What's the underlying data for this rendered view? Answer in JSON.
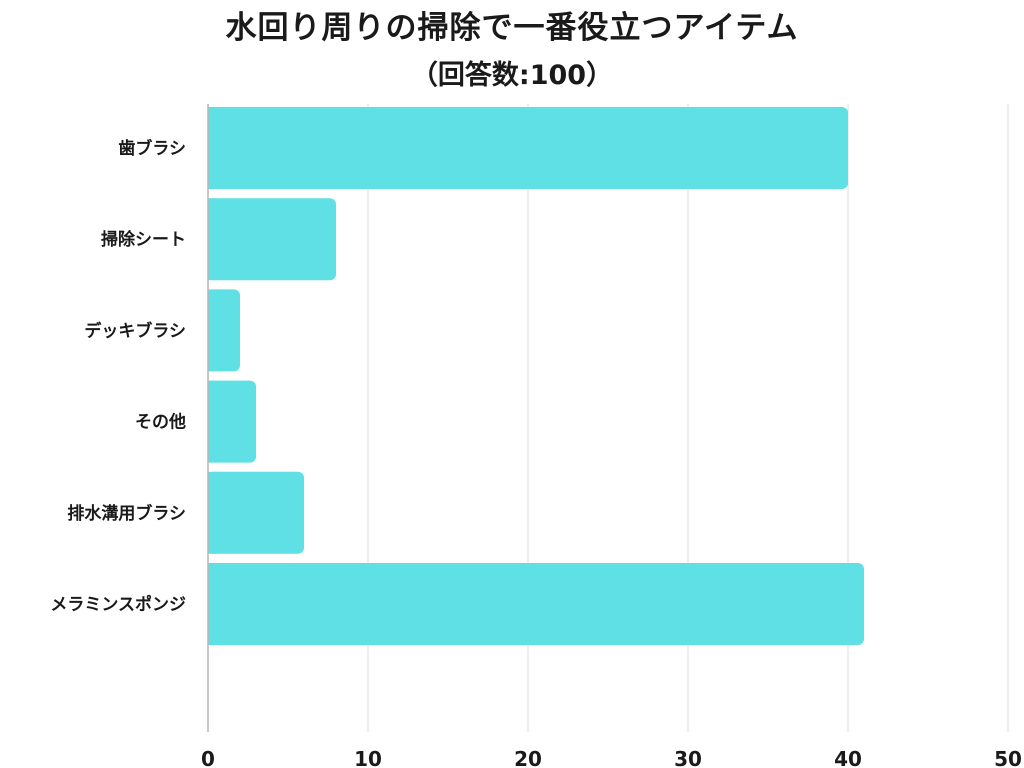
{
  "chart_data": {
    "type": "bar",
    "orientation": "horizontal",
    "title": "水回り周りの掃除で一番役立つアイテム",
    "subtitle": "（回答数:100）",
    "categories": [
      "歯ブラシ",
      "掃除シート",
      "デッキブラシ",
      "その他",
      "排水溝用ブラシ",
      "メラミンスポンジ"
    ],
    "values": [
      40,
      8,
      2,
      3,
      6,
      41
    ],
    "xlim": [
      0,
      50
    ],
    "xticks": [
      0,
      10,
      20,
      30,
      40,
      50
    ],
    "xlabel": "",
    "ylabel": "",
    "grid": true,
    "legend": "none",
    "bar_color": "#5ee0e4",
    "grid_color": "#dddddd"
  }
}
